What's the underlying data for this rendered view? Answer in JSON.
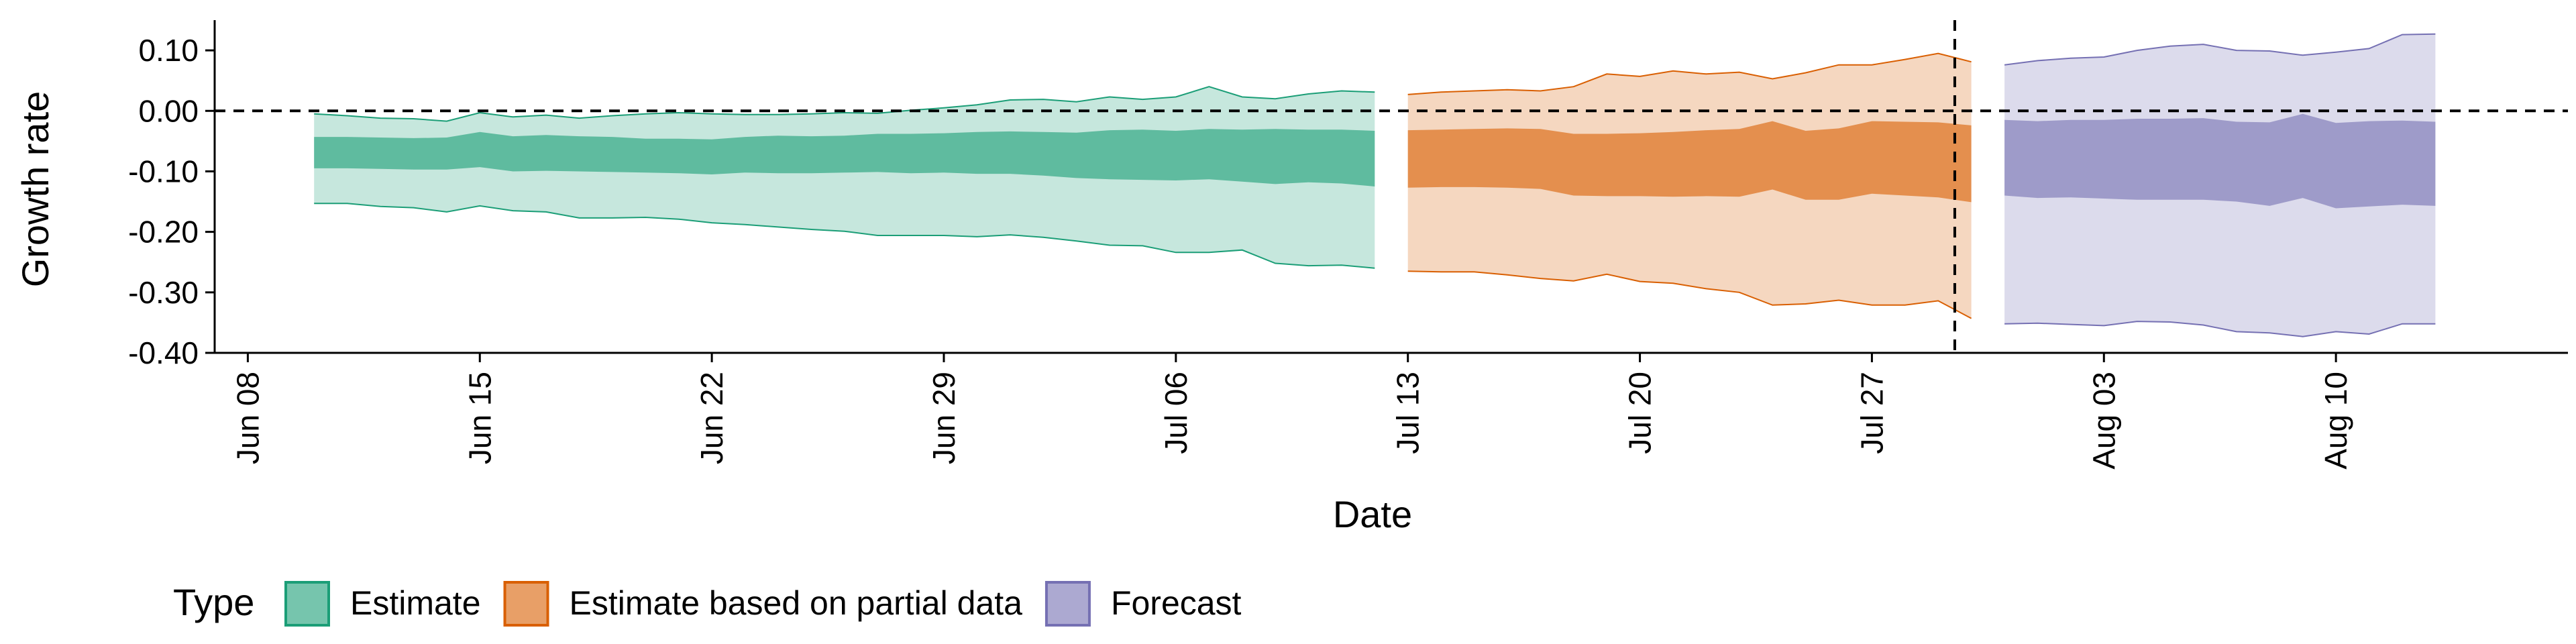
{
  "chart_data": {
    "type": "area",
    "title": "",
    "xlabel": "Date",
    "ylabel": "Growth rate",
    "ylim": [
      -0.4,
      0.15
    ],
    "xlim": [
      "2021-06-07",
      "2021-08-17"
    ],
    "grid": false,
    "y_ticks": [
      -0.4,
      -0.3,
      -0.2,
      -0.1,
      0.0,
      0.1
    ],
    "y_tick_labels": [
      "-0.40",
      "-0.30",
      "-0.20",
      "-0.10",
      "0.00",
      "0.10"
    ],
    "x_ticks": [
      "2021-06-08",
      "2021-06-15",
      "2021-06-22",
      "2021-06-29",
      "2021-07-06",
      "2021-07-13",
      "2021-07-20",
      "2021-07-27",
      "2021-08-03",
      "2021-08-10"
    ],
    "x_tick_labels": [
      "Jun 08",
      "Jun 15",
      "Jun 22",
      "Jun 29",
      "Jul 06",
      "Jul 13",
      "Jul 20",
      "Jul 27",
      "Aug 03",
      "Aug 10"
    ],
    "reference_lines": {
      "horizontal_y": 0.0,
      "vertical_x": "2021-07-29"
    },
    "legend": {
      "title": "Type",
      "position": "bottom-left",
      "entries": [
        "Estimate",
        "Estimate based on partial data",
        "Forecast"
      ]
    },
    "series": [
      {
        "name": "Estimate",
        "color": "#1b9e77",
        "points": [
          {
            "x": "2021-06-10",
            "lower90": -0.153,
            "lower50": -0.095,
            "upper50": -0.043,
            "upper90": -0.005
          },
          {
            "x": "2021-06-11",
            "lower90": -0.153,
            "lower50": -0.095,
            "upper50": -0.043,
            "upper90": -0.008
          },
          {
            "x": "2021-06-12",
            "lower90": -0.158,
            "lower50": -0.096,
            "upper50": -0.044,
            "upper90": -0.012
          },
          {
            "x": "2021-06-13",
            "lower90": -0.16,
            "lower50": -0.097,
            "upper50": -0.045,
            "upper90": -0.013
          },
          {
            "x": "2021-06-14",
            "lower90": -0.167,
            "lower50": -0.097,
            "upper50": -0.044,
            "upper90": -0.017
          },
          {
            "x": "2021-06-15",
            "lower90": -0.157,
            "lower50": -0.093,
            "upper50": -0.035,
            "upper90": -0.003
          },
          {
            "x": "2021-06-16",
            "lower90": -0.165,
            "lower50": -0.1,
            "upper50": -0.042,
            "upper90": -0.01
          },
          {
            "x": "2021-06-17",
            "lower90": -0.167,
            "lower50": -0.099,
            "upper50": -0.04,
            "upper90": -0.007
          },
          {
            "x": "2021-06-18",
            "lower90": -0.177,
            "lower50": -0.1,
            "upper50": -0.042,
            "upper90": -0.012
          },
          {
            "x": "2021-06-19",
            "lower90": -0.177,
            "lower50": -0.101,
            "upper50": -0.043,
            "upper90": -0.008
          },
          {
            "x": "2021-06-20",
            "lower90": -0.176,
            "lower50": -0.102,
            "upper50": -0.046,
            "upper90": -0.005
          },
          {
            "x": "2021-06-21",
            "lower90": -0.179,
            "lower50": -0.103,
            "upper50": -0.046,
            "upper90": -0.003
          },
          {
            "x": "2021-06-22",
            "lower90": -0.185,
            "lower50": -0.105,
            "upper50": -0.047,
            "upper90": -0.005
          },
          {
            "x": "2021-06-23",
            "lower90": -0.188,
            "lower50": -0.102,
            "upper50": -0.043,
            "upper90": -0.006
          },
          {
            "x": "2021-06-24",
            "lower90": -0.192,
            "lower50": -0.103,
            "upper50": -0.041,
            "upper90": -0.006
          },
          {
            "x": "2021-06-25",
            "lower90": -0.196,
            "lower50": -0.103,
            "upper50": -0.042,
            "upper90": -0.005
          },
          {
            "x": "2021-06-26",
            "lower90": -0.199,
            "lower50": -0.102,
            "upper50": -0.041,
            "upper90": -0.003
          },
          {
            "x": "2021-06-27",
            "lower90": -0.206,
            "lower50": -0.101,
            "upper50": -0.038,
            "upper90": -0.004
          },
          {
            "x": "2021-06-28",
            "lower90": -0.206,
            "lower50": -0.103,
            "upper50": -0.038,
            "upper90": 0.001
          },
          {
            "x": "2021-06-29",
            "lower90": -0.206,
            "lower50": -0.102,
            "upper50": -0.037,
            "upper90": 0.005
          },
          {
            "x": "2021-06-30",
            "lower90": -0.208,
            "lower50": -0.104,
            "upper50": -0.035,
            "upper90": 0.01
          },
          {
            "x": "2021-07-01",
            "lower90": -0.205,
            "lower50": -0.104,
            "upper50": -0.034,
            "upper90": 0.018
          },
          {
            "x": "2021-07-02",
            "lower90": -0.209,
            "lower50": -0.107,
            "upper50": -0.035,
            "upper90": 0.019
          },
          {
            "x": "2021-07-03",
            "lower90": -0.215,
            "lower50": -0.111,
            "upper50": -0.036,
            "upper90": 0.015
          },
          {
            "x": "2021-07-04",
            "lower90": -0.222,
            "lower50": -0.113,
            "upper50": -0.032,
            "upper90": 0.023
          },
          {
            "x": "2021-07-05",
            "lower90": -0.223,
            "lower50": -0.114,
            "upper50": -0.031,
            "upper90": 0.019
          },
          {
            "x": "2021-07-06",
            "lower90": -0.234,
            "lower50": -0.115,
            "upper50": -0.033,
            "upper90": 0.023
          },
          {
            "x": "2021-07-07",
            "lower90": -0.234,
            "lower50": -0.113,
            "upper50": -0.03,
            "upper90": 0.04
          },
          {
            "x": "2021-07-08",
            "lower90": -0.23,
            "lower50": -0.117,
            "upper50": -0.031,
            "upper90": 0.023
          },
          {
            "x": "2021-07-09",
            "lower90": -0.252,
            "lower50": -0.121,
            "upper50": -0.03,
            "upper90": 0.02
          },
          {
            "x": "2021-07-10",
            "lower90": -0.256,
            "lower50": -0.118,
            "upper50": -0.031,
            "upper90": 0.028
          },
          {
            "x": "2021-07-11",
            "lower90": -0.255,
            "lower50": -0.12,
            "upper50": -0.031,
            "upper90": 0.033
          },
          {
            "x": "2021-07-12",
            "lower90": -0.26,
            "lower50": -0.125,
            "upper50": -0.033,
            "upper90": 0.031
          }
        ]
      },
      {
        "name": "Estimate based on partial data",
        "color": "#d95f02",
        "points": [
          {
            "x": "2021-07-13",
            "lower90": -0.265,
            "lower50": -0.127,
            "upper50": -0.032,
            "upper90": 0.027
          },
          {
            "x": "2021-07-14",
            "lower90": -0.266,
            "lower50": -0.126,
            "upper50": -0.031,
            "upper90": 0.031
          },
          {
            "x": "2021-07-15",
            "lower90": -0.266,
            "lower50": -0.126,
            "upper50": -0.03,
            "upper90": 0.033
          },
          {
            "x": "2021-07-16",
            "lower90": -0.271,
            "lower50": -0.127,
            "upper50": -0.029,
            "upper90": 0.035
          },
          {
            "x": "2021-07-17",
            "lower90": -0.277,
            "lower50": -0.129,
            "upper50": -0.03,
            "upper90": 0.033
          },
          {
            "x": "2021-07-18",
            "lower90": -0.281,
            "lower50": -0.14,
            "upper50": -0.038,
            "upper90": 0.04
          },
          {
            "x": "2021-07-19",
            "lower90": -0.27,
            "lower50": -0.141,
            "upper50": -0.038,
            "upper90": 0.061
          },
          {
            "x": "2021-07-20",
            "lower90": -0.282,
            "lower50": -0.141,
            "upper50": -0.037,
            "upper90": 0.057
          },
          {
            "x": "2021-07-21",
            "lower90": -0.285,
            "lower50": -0.142,
            "upper50": -0.035,
            "upper90": 0.066
          },
          {
            "x": "2021-07-22",
            "lower90": -0.294,
            "lower50": -0.141,
            "upper50": -0.032,
            "upper90": 0.061
          },
          {
            "x": "2021-07-23",
            "lower90": -0.3,
            "lower50": -0.142,
            "upper50": -0.03,
            "upper90": 0.064
          },
          {
            "x": "2021-07-24",
            "lower90": -0.321,
            "lower50": -0.13,
            "upper50": -0.017,
            "upper90": 0.053
          },
          {
            "x": "2021-07-25",
            "lower90": -0.319,
            "lower50": -0.147,
            "upper50": -0.033,
            "upper90": 0.063
          },
          {
            "x": "2021-07-26",
            "lower90": -0.313,
            "lower50": -0.147,
            "upper50": -0.029,
            "upper90": 0.076
          },
          {
            "x": "2021-07-27",
            "lower90": -0.321,
            "lower50": -0.137,
            "upper50": -0.017,
            "upper90": 0.076
          },
          {
            "x": "2021-07-28",
            "lower90": -0.321,
            "lower50": -0.14,
            "upper50": -0.018,
            "upper90": 0.085
          },
          {
            "x": "2021-07-29",
            "lower90": -0.314,
            "lower50": -0.143,
            "upper50": -0.019,
            "upper90": 0.095
          },
          {
            "x": "2021-07-30",
            "lower90": -0.343,
            "lower50": -0.151,
            "upper50": -0.024,
            "upper90": 0.081
          }
        ]
      },
      {
        "name": "Forecast",
        "color": "#7570b3",
        "points": [
          {
            "x": "2021-07-31",
            "lower90": -0.352,
            "lower50": -0.14,
            "upper50": -0.015,
            "upper90": 0.076
          },
          {
            "x": "2021-08-01",
            "lower90": -0.351,
            "lower50": -0.144,
            "upper50": -0.017,
            "upper90": 0.083
          },
          {
            "x": "2021-08-02",
            "lower90": -0.353,
            "lower50": -0.143,
            "upper50": -0.015,
            "upper90": 0.087
          },
          {
            "x": "2021-08-03",
            "lower90": -0.355,
            "lower50": -0.145,
            "upper50": -0.015,
            "upper90": 0.089
          },
          {
            "x": "2021-08-04",
            "lower90": -0.348,
            "lower50": -0.147,
            "upper50": -0.013,
            "upper90": 0.1
          },
          {
            "x": "2021-08-05",
            "lower90": -0.349,
            "lower50": -0.147,
            "upper50": -0.013,
            "upper90": 0.107
          },
          {
            "x": "2021-08-06",
            "lower90": -0.354,
            "lower50": -0.147,
            "upper50": -0.012,
            "upper90": 0.11
          },
          {
            "x": "2021-08-07",
            "lower90": -0.365,
            "lower50": -0.15,
            "upper50": -0.018,
            "upper90": 0.1
          },
          {
            "x": "2021-08-08",
            "lower90": -0.367,
            "lower50": -0.157,
            "upper50": -0.019,
            "upper90": 0.099
          },
          {
            "x": "2021-08-09",
            "lower90": -0.373,
            "lower50": -0.144,
            "upper50": -0.005,
            "upper90": 0.092
          },
          {
            "x": "2021-08-10",
            "lower90": -0.365,
            "lower50": -0.161,
            "upper50": -0.02,
            "upper90": 0.097
          },
          {
            "x": "2021-08-11",
            "lower90": -0.369,
            "lower50": -0.158,
            "upper50": -0.017,
            "upper90": 0.103
          },
          {
            "x": "2021-08-12",
            "lower90": -0.352,
            "lower50": -0.155,
            "upper50": -0.016,
            "upper90": 0.126
          },
          {
            "x": "2021-08-13",
            "lower90": -0.352,
            "lower50": -0.157,
            "upper50": -0.018,
            "upper90": 0.127
          }
        ]
      }
    ]
  }
}
